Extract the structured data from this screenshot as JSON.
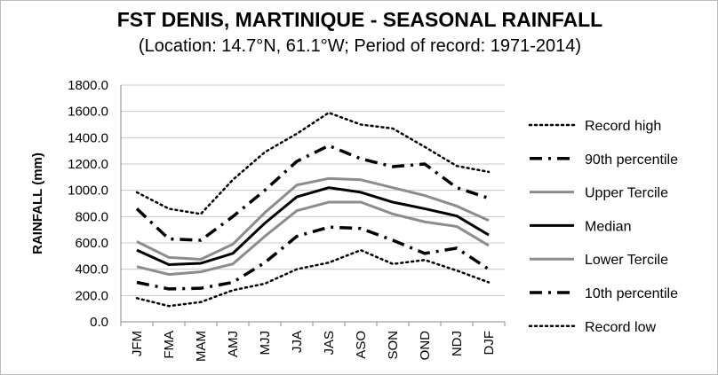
{
  "chart_data": {
    "type": "line",
    "title": "FST DENIS, MARTINIQUE - SEASONAL RAINFALL",
    "subtitle": "(Location: 14.7°N, 61.1°W; Period of record: 1971-2014)",
    "ylabel": "RAINFALL (mm)",
    "xlabel": "",
    "ylim": [
      0,
      1800
    ],
    "ytick_step": 200,
    "yticks": [
      "0.0",
      "200.0",
      "400.0",
      "600.0",
      "800.0",
      "1000.0",
      "1200.0",
      "1400.0",
      "1600.0",
      "1800.0"
    ],
    "grid": true,
    "legend_position": "right",
    "categories": [
      "JFM",
      "FMA",
      "MAM",
      "AMJ",
      "MJJ",
      "JJA",
      "JAS",
      "ASO",
      "SON",
      "OND",
      "NDJ",
      "DJF"
    ],
    "series": [
      {
        "name": "Record high",
        "color": "#000000",
        "style": "dotted",
        "values": [
          985,
          860,
          820,
          1080,
          1290,
          1430,
          1590,
          1500,
          1470,
          1330,
          1185,
          1140
        ]
      },
      {
        "name": "90th percentile",
        "color": "#000000",
        "style": "dashdot",
        "values": [
          860,
          630,
          620,
          800,
          1000,
          1220,
          1340,
          1240,
          1180,
          1200,
          1020,
          940
        ]
      },
      {
        "name": "Upper Tercile",
        "color": "#8c8c8c",
        "style": "solid",
        "values": [
          610,
          490,
          475,
          590,
          830,
          1040,
          1090,
          1080,
          1020,
          960,
          880,
          770
        ]
      },
      {
        "name": "Median",
        "color": "#000000",
        "style": "solid",
        "values": [
          545,
          435,
          445,
          520,
          750,
          950,
          1020,
          985,
          910,
          860,
          805,
          660
        ]
      },
      {
        "name": "Lower Tercile",
        "color": "#8c8c8c",
        "style": "solid",
        "values": [
          420,
          360,
          380,
          440,
          650,
          845,
          910,
          910,
          820,
          760,
          725,
          580
        ]
      },
      {
        "name": "10th percentile",
        "color": "#000000",
        "style": "dashdot",
        "values": [
          300,
          250,
          255,
          300,
          450,
          650,
          720,
          710,
          620,
          520,
          560,
          400
        ]
      },
      {
        "name": "Record low",
        "color": "#000000",
        "style": "dotted",
        "values": [
          180,
          120,
          150,
          240,
          290,
          400,
          450,
          545,
          440,
          470,
          390,
          300
        ]
      }
    ]
  }
}
